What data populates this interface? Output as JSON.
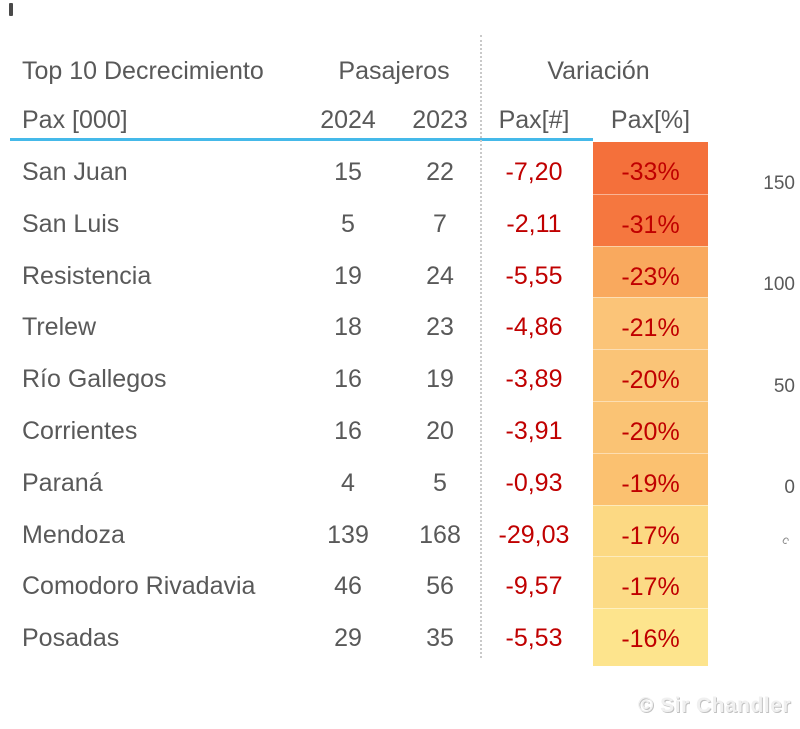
{
  "table": {
    "title": "Top 10 Decrecimiento",
    "group_headers": {
      "pasajeros": "Pasajeros",
      "variacion": "Variación"
    },
    "columns": {
      "name": "Pax [000]",
      "y2024": "2024",
      "y2023": "2023",
      "pax_num": "Pax[#]",
      "pax_pct": "Pax[%]"
    },
    "rows": [
      {
        "name": "San Juan",
        "y2024": "15",
        "y2023": "22",
        "pax_num": "-7,20",
        "pax_pct": "-33%",
        "pct_bg": "#F4703B"
      },
      {
        "name": "San Luis",
        "y2024": "5",
        "y2023": "7",
        "pax_num": "-2,11",
        "pax_pct": "-31%",
        "pct_bg": "#F5773F"
      },
      {
        "name": "Resistencia",
        "y2024": "19",
        "y2023": "24",
        "pax_num": "-5,55",
        "pax_pct": "-23%",
        "pct_bg": "#F9A95E"
      },
      {
        "name": "Trelew",
        "y2024": "18",
        "y2023": "23",
        "pax_num": "-4,86",
        "pax_pct": "-21%",
        "pct_bg": "#FBC478"
      },
      {
        "name": "Río Gallegos",
        "y2024": "16",
        "y2023": "19",
        "pax_num": "-3,89",
        "pax_pct": "-20%",
        "pct_bg": "#FAC477"
      },
      {
        "name": "Corrientes",
        "y2024": "16",
        "y2023": "20",
        "pax_num": "-3,91",
        "pax_pct": "-20%",
        "pct_bg": "#FAC374"
      },
      {
        "name": "Paraná",
        "y2024": "4",
        "y2023": "5",
        "pax_num": "-0,93",
        "pax_pct": "-19%",
        "pct_bg": "#FBC170"
      },
      {
        "name": "Mendoza",
        "y2024": "139",
        "y2023": "168",
        "pax_num": "-29,03",
        "pax_pct": "-17%",
        "pct_bg": "#FCD983"
      },
      {
        "name": "Comodoro Rivadavia",
        "y2024": "46",
        "y2023": "56",
        "pax_num": "-9,57",
        "pax_pct": "-17%",
        "pct_bg": "#FCDB86"
      },
      {
        "name": "Posadas",
        "y2024": "29",
        "y2023": "35",
        "pax_num": "-5,53",
        "pax_pct": "-16%",
        "pct_bg": "#FDE48D"
      }
    ],
    "colors": {
      "text": "#595959",
      "negative_value": "#C00000",
      "header_underline": "#45B9E9"
    }
  },
  "chart_axis": {
    "ticks": [
      "150",
      "100",
      "50",
      "0"
    ],
    "fragment": "c"
  },
  "watermark": "© Sir Chandler",
  "chart_data": {
    "type": "table",
    "title": "Top 10 Decrecimiento",
    "column_groups": [
      "Pasajeros",
      "Variación"
    ],
    "columns": [
      "Pax [000]",
      "2024",
      "2023",
      "Pax[#]",
      "Pax[%]"
    ],
    "rows": [
      {
        "city": "San Juan",
        "pax_2024": 15,
        "pax_2023": 22,
        "delta_pax": -7.2,
        "delta_pct": -33
      },
      {
        "city": "San Luis",
        "pax_2024": 5,
        "pax_2023": 7,
        "delta_pax": -2.11,
        "delta_pct": -31
      },
      {
        "city": "Resistencia",
        "pax_2024": 19,
        "pax_2023": 24,
        "delta_pax": -5.55,
        "delta_pct": -23
      },
      {
        "city": "Trelew",
        "pax_2024": 18,
        "pax_2023": 23,
        "delta_pax": -4.86,
        "delta_pct": -21
      },
      {
        "city": "Río Gallegos",
        "pax_2024": 16,
        "pax_2023": 19,
        "delta_pax": -3.89,
        "delta_pct": -20
      },
      {
        "city": "Corrientes",
        "pax_2024": 16,
        "pax_2023": 20,
        "delta_pax": -3.91,
        "delta_pct": -20
      },
      {
        "city": "Paraná",
        "pax_2024": 4,
        "pax_2023": 5,
        "delta_pax": -0.93,
        "delta_pct": -19
      },
      {
        "city": "Mendoza",
        "pax_2024": 139,
        "pax_2023": 168,
        "delta_pax": -29.03,
        "delta_pct": -17
      },
      {
        "city": "Comodoro Rivadavia",
        "pax_2024": 46,
        "pax_2023": 56,
        "delta_pax": -9.57,
        "delta_pct": -17
      },
      {
        "city": "Posadas",
        "pax_2024": 29,
        "pax_2023": 35,
        "delta_pax": -5.53,
        "delta_pct": -16
      }
    ],
    "conditional_format": "delta_pct color scale orange (worst) to light yellow (best)",
    "adjacent_cropped_chart": {
      "y_axis_ticks": [
        150,
        100,
        50,
        0
      ]
    }
  }
}
